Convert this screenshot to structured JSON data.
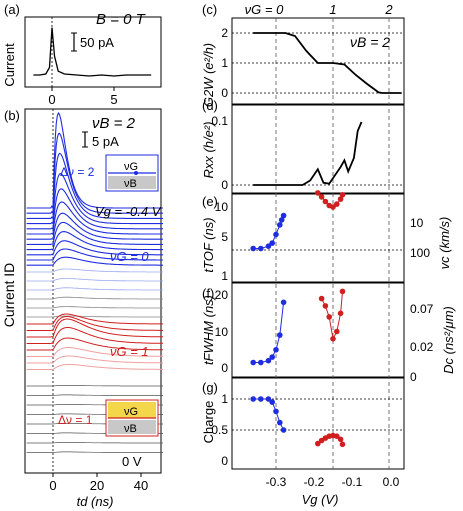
{
  "panel_a": {
    "label": "(a)",
    "field": "B = 0 T",
    "ylabel": "Current",
    "scalebar": "50 pA",
    "xticks": [
      "0",
      "5"
    ]
  },
  "panel_b": {
    "label": "(b)",
    "nu_b": "νB = 2",
    "ylabel": "Current  ID",
    "scalebar": "5 pA",
    "vg_top": "Vg = -0.4 V",
    "nu_g0": "νG = 0",
    "nu_g1": "νG = 1",
    "v0": "0 V",
    "dnu2": "Δν = 2",
    "dnu1": "Δν = 1",
    "inset_g": "νG",
    "inset_b": "νB",
    "xticks": [
      "0",
      "20",
      "40"
    ],
    "xlabel": "td (ns)"
  },
  "right": {
    "label_c": "(c)",
    "label_d": "(d)",
    "label_e": "(e)",
    "label_f": "(f)",
    "label_g": "(g)",
    "top_nu": [
      "νG = 0",
      "1",
      "2"
    ],
    "nub_c": "νB = 2",
    "ylabel_c": "G2W (e²/h)",
    "yticks_c": [
      "2",
      "1",
      "0"
    ],
    "ylabel_d": "Rxx (h/e²)",
    "yticks_d": [
      "0.1",
      "0"
    ],
    "ylabel_e": "tTOF (ns)",
    "yticks_e": [
      "10",
      "5",
      "1"
    ],
    "ylabel_e_right": "vc (km/s)",
    "yticks_e_right": [
      "10",
      "100"
    ],
    "ylabel_f": "tFWHM (ns)",
    "yticks_f": [
      "20",
      "10",
      "0"
    ],
    "ylabel_f_right": "Dc (ns²/μm)",
    "yticks_f_right": [
      "0.07",
      "0.02",
      "0"
    ],
    "ylabel_g": "Charge",
    "yticks_g": [
      "1",
      "0.5",
      "0"
    ],
    "xticks": [
      "-0.3",
      "-0.2",
      "-0.1",
      "0.0"
    ],
    "xlabel": "Vg (V)"
  },
  "colors": {
    "blue": "#1f2de0",
    "red": "#d01f1f",
    "pink": "#f0a0a0",
    "lightblue": "#9aa8f0",
    "grey": "#888888",
    "yellow": "#f3d64a"
  },
  "chart_data": [
    {
      "type": "line",
      "title": "",
      "xlabel": "",
      "ylabel": "Current",
      "series": [
        {
          "x": [
            -1.5,
            -1,
            -0.5,
            -0.2,
            0,
            0.2,
            0.5,
            1,
            2,
            3,
            4,
            5,
            6,
            7,
            8
          ],
          "y": [
            0,
            0,
            1,
            8,
            50,
            20,
            4,
            1,
            0,
            -1,
            0,
            -1,
            0,
            0,
            0
          ]
        }
      ]
    },
    {
      "type": "line",
      "title": "",
      "xlabel": "td (ns)",
      "ylabel": "Current ID",
      "series": [
        {
          "name": "Vg = -0.4 V",
          "x": [
            -10,
            0,
            2,
            5,
            10,
            20,
            30,
            40,
            50
          ],
          "y": [
            0,
            0.5,
            6,
            3,
            1.5,
            0.5,
            0.2,
            0.1,
            0
          ]
        },
        {
          "name": "νG = 1",
          "x": [
            -10,
            0,
            5,
            10,
            20,
            30,
            40,
            50
          ],
          "y": [
            0,
            0,
            1.5,
            1,
            0.4,
            0.2,
            0.1,
            0
          ]
        },
        {
          "name": "0 V",
          "x": [
            -10,
            0,
            10,
            20,
            30,
            40,
            50
          ],
          "y": [
            0,
            0,
            0,
            0,
            0,
            0,
            0
          ]
        }
      ]
    },
    {
      "type": "line",
      "xlabel": "Vg (V)",
      "ylabel": "G2W (e²/h)",
      "xlim": [
        -0.37,
        0.03
      ],
      "ylim": [
        -0.2,
        2.6
      ],
      "series": [
        {
          "x": [
            -0.36,
            -0.275,
            -0.25,
            -0.22,
            -0.19,
            -0.15,
            -0.12,
            -0.09,
            -0.06,
            -0.03,
            -0.02,
            0.03
          ],
          "y": [
            2,
            2,
            1.9,
            1.4,
            1.0,
            1.0,
            0.95,
            0.6,
            0.3,
            0.02,
            0,
            0
          ]
        }
      ]
    },
    {
      "type": "line",
      "xlabel": "Vg (V)",
      "ylabel": "Rxx (h/e²)",
      "xlim": [
        -0.37,
        0.03
      ],
      "ylim": [
        -0.01,
        0.14
      ],
      "series": [
        {
          "x": [
            -0.36,
            -0.23,
            -0.21,
            -0.19,
            -0.175,
            -0.16,
            -0.13,
            -0.12,
            -0.11,
            -0.095,
            -0.085,
            -0.075
          ],
          "y": [
            0,
            0,
            0.01,
            0.035,
            0.005,
            0.003,
            0.04,
            0.055,
            0.03,
            0.06,
            0.12,
            0.14
          ]
        }
      ]
    },
    {
      "type": "scatter",
      "xlabel": "Vg (V)",
      "ylabel": "tTOF (ns)",
      "xlim": [
        -0.37,
        0.03
      ],
      "series": [
        {
          "name": "blue",
          "x": [
            -0.36,
            -0.34,
            -0.32,
            -0.31,
            -0.3,
            -0.29,
            -0.285,
            -0.28
          ],
          "y": [
            2.5,
            2.5,
            2.7,
            3,
            4,
            5.5,
            6.5,
            7.5
          ]
        },
        {
          "name": "red",
          "x": [
            -0.19,
            -0.18,
            -0.17,
            -0.16,
            -0.15,
            -0.14,
            -0.13,
            -0.125
          ],
          "y": [
            16,
            14,
            12,
            10.5,
            10,
            11,
            13,
            15
          ]
        }
      ]
    },
    {
      "type": "scatter",
      "xlabel": "Vg (V)",
      "ylabel": "tFWHM (ns)",
      "xlim": [
        -0.37,
        0.03
      ],
      "ylim": [
        0,
        22
      ],
      "series": [
        {
          "name": "blue",
          "x": [
            -0.36,
            -0.34,
            -0.32,
            -0.31,
            -0.3,
            -0.29,
            -0.28
          ],
          "y": [
            1.5,
            1.5,
            2,
            3,
            5,
            9,
            18
          ]
        },
        {
          "name": "red",
          "x": [
            -0.18,
            -0.17,
            -0.16,
            -0.15,
            -0.14,
            -0.13,
            -0.125
          ],
          "y": [
            19,
            17,
            14,
            8,
            10,
            15,
            21
          ]
        }
      ]
    },
    {
      "type": "scatter",
      "xlabel": "Vg (V)",
      "ylabel": "Charge",
      "xlim": [
        -0.37,
        0.03
      ],
      "ylim": [
        -0.05,
        1.1
      ],
      "series": [
        {
          "name": "blue",
          "x": [
            -0.36,
            -0.34,
            -0.32,
            -0.31,
            -0.3,
            -0.29,
            -0.28
          ],
          "y": [
            1,
            1,
            1,
            0.95,
            0.8,
            0.62,
            0.5
          ]
        },
        {
          "name": "red",
          "x": [
            -0.19,
            -0.18,
            -0.17,
            -0.16,
            -0.15,
            -0.14,
            -0.13,
            -0.125
          ],
          "y": [
            0.28,
            0.33,
            0.37,
            0.4,
            0.41,
            0.4,
            0.35,
            0.27
          ]
        }
      ]
    }
  ]
}
